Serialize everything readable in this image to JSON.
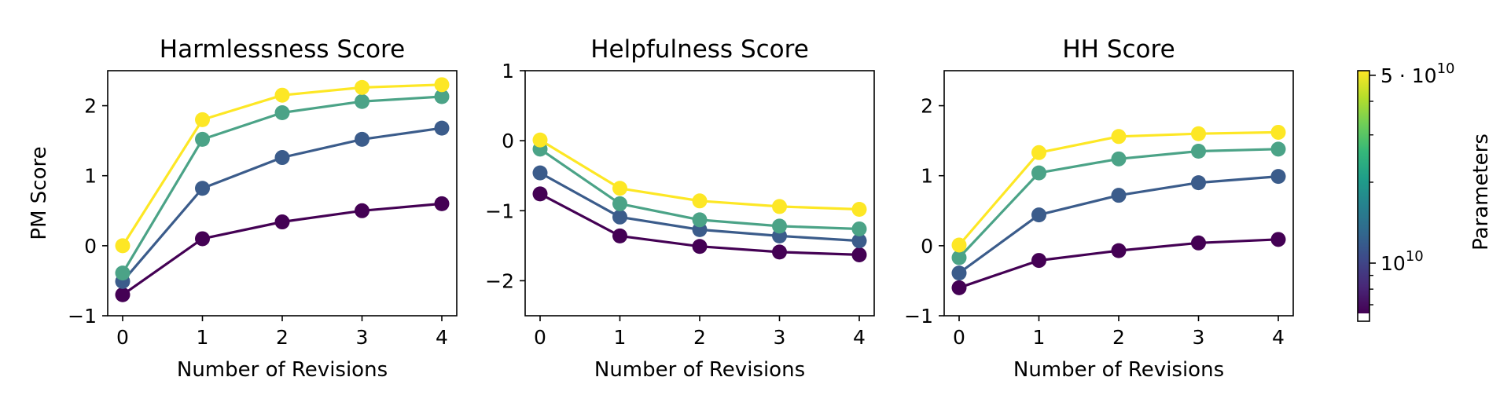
{
  "chart_data": [
    {
      "type": "line",
      "title": "Harmlessness Score",
      "xlabel": "Number of Revisions",
      "ylabel": "PM Score",
      "x": [
        0,
        1,
        2,
        3,
        4
      ],
      "xticks": [
        "0",
        "1",
        "2",
        "3",
        "4"
      ],
      "ylim": [
        -1,
        2.5
      ],
      "yticks": [
        -1,
        0,
        1,
        2
      ],
      "ytick_labels": [
        "−1",
        "0",
        "1",
        "2"
      ],
      "series": [
        {
          "values": [
            -0.7,
            0.1,
            0.34,
            0.5,
            0.6
          ],
          "color": "#440154"
        },
        {
          "values": [
            -0.51,
            0.82,
            1.26,
            1.52,
            1.68
          ],
          "color": "#3b5c8b"
        },
        {
          "values": [
            -0.39,
            1.52,
            1.9,
            2.06,
            2.13
          ],
          "color": "#4ba387"
        },
        {
          "values": [
            0.0,
            1.8,
            2.15,
            2.26,
            2.3
          ],
          "color": "#fde725"
        }
      ]
    },
    {
      "type": "line",
      "title": "Helpfulness Score",
      "xlabel": "Number of Revisions",
      "ylabel": "",
      "x": [
        0,
        1,
        2,
        3,
        4
      ],
      "xticks": [
        "0",
        "1",
        "2",
        "3",
        "4"
      ],
      "ylim": [
        -2.5,
        1
      ],
      "yticks": [
        -2,
        -1,
        0,
        1
      ],
      "ytick_labels": [
        "−2",
        "−1",
        "0",
        "1"
      ],
      "series": [
        {
          "values": [
            -0.76,
            -1.36,
            -1.51,
            -1.59,
            -1.63
          ],
          "color": "#440154"
        },
        {
          "values": [
            -0.46,
            -1.09,
            -1.27,
            -1.36,
            -1.43
          ],
          "color": "#3b5c8b"
        },
        {
          "values": [
            -0.12,
            -0.9,
            -1.13,
            -1.22,
            -1.26
          ],
          "color": "#4ba387"
        },
        {
          "values": [
            0.01,
            -0.68,
            -0.86,
            -0.94,
            -0.98
          ],
          "color": "#fde725"
        }
      ]
    },
    {
      "type": "line",
      "title": "HH Score",
      "xlabel": "Number of Revisions",
      "ylabel": "",
      "x": [
        0,
        1,
        2,
        3,
        4
      ],
      "xticks": [
        "0",
        "1",
        "2",
        "3",
        "4"
      ],
      "ylim": [
        -1,
        2.5
      ],
      "yticks": [
        -1,
        0,
        1,
        2
      ],
      "ytick_labels": [
        "−1",
        "0",
        "1",
        "2"
      ],
      "series": [
        {
          "values": [
            -0.6,
            -0.21,
            -0.07,
            0.04,
            0.09
          ],
          "color": "#440154"
        },
        {
          "values": [
            -0.39,
            0.44,
            0.72,
            0.9,
            0.99
          ],
          "color": "#3b5c8b"
        },
        {
          "values": [
            -0.17,
            1.04,
            1.24,
            1.35,
            1.38
          ],
          "color": "#4ba387"
        },
        {
          "values": [
            0.01,
            1.33,
            1.56,
            1.6,
            1.62
          ],
          "color": "#fde725"
        }
      ]
    }
  ],
  "colorbar": {
    "label": "Parameters",
    "scale": "log",
    "range": [
      6500000000,
      52000000000
    ],
    "major_ticks": [
      {
        "value": 10000000000,
        "base": "10",
        "exp": "10",
        "prefix": ""
      },
      {
        "value": 50000000000,
        "base": "10",
        "exp": "10",
        "prefix": "5 · "
      }
    ],
    "minor_ticks": [
      7000000000,
      8000000000,
      9000000000,
      20000000000,
      30000000000,
      40000000000
    ],
    "colormap": [
      "#440154",
      "#482878",
      "#3e4989",
      "#31688e",
      "#26828e",
      "#1f9e89",
      "#35b779",
      "#6ece58",
      "#b5de2b",
      "#fde725"
    ]
  }
}
